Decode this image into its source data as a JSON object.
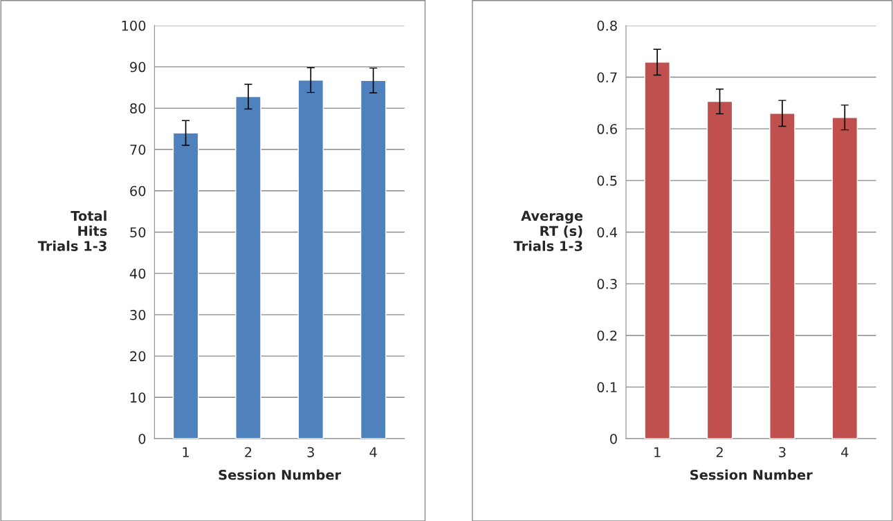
{
  "chart_data": [
    {
      "type": "bar",
      "xlabel": "Session Number",
      "ylabel": "Total\nHits\nTrials 1-3",
      "categories": [
        "1",
        "2",
        "3",
        "4"
      ],
      "series": [
        {
          "color": "#4f81bd",
          "values": [
            74,
            82.8,
            86.8,
            86.7
          ],
          "errors": [
            3,
            3,
            3,
            3
          ]
        }
      ],
      "ylim": [
        0,
        100
      ],
      "yticks": [
        0,
        10,
        20,
        30,
        40,
        50,
        60,
        70,
        80,
        90,
        100
      ],
      "grid": "y"
    },
    {
      "type": "bar",
      "xlabel": "Session Number",
      "ylabel": "Average\nRT (s)\nTrials 1-3",
      "categories": [
        "1",
        "2",
        "3",
        "4"
      ],
      "series": [
        {
          "color": "#c0504d",
          "values": [
            0.729,
            0.653,
            0.63,
            0.622
          ],
          "errors": [
            0.025,
            0.024,
            0.025,
            0.024
          ]
        }
      ],
      "ylim": [
        0,
        0.8
      ],
      "yticks": [
        0,
        0.1,
        0.2,
        0.3,
        0.4,
        0.5,
        0.6,
        0.7,
        0.8
      ],
      "grid": "y"
    }
  ]
}
